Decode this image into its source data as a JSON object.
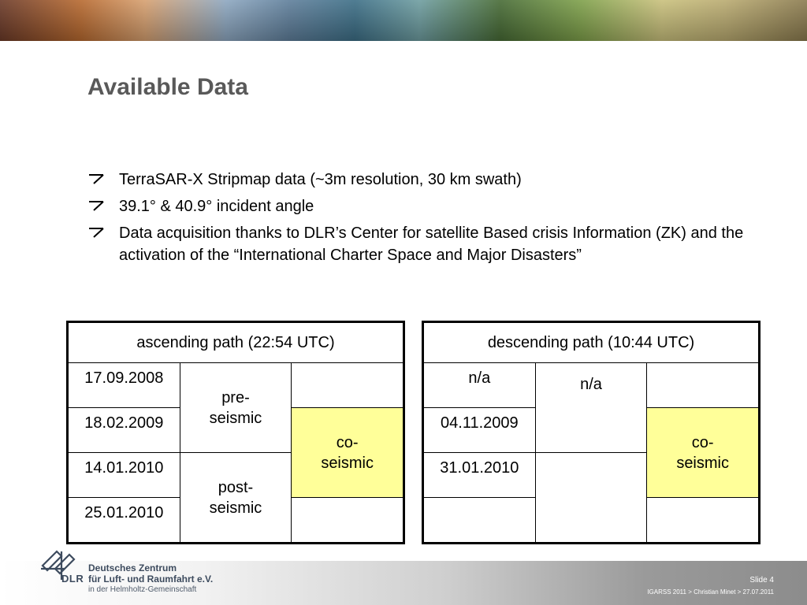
{
  "slide": {
    "title": "Available Data",
    "bullets": [
      "TerraSAR-X Stripmap data (~3m resolution, 30 km swath)",
      "39.1° & 40.9° incident angle",
      "Data acquisition thanks to DLR’s Center for satellite Based crisis Information (ZK) and the activation of the “International Charter Space and Major Disasters”"
    ]
  },
  "ascending": {
    "header": "ascending path (22:54 UTC)",
    "dates": [
      "17.09.2008",
      "18.02.2009",
      "14.01.2010",
      "25.01.2010"
    ],
    "pre": "pre-\nseismic",
    "post": "post-\nseismic",
    "co": "co-\nseismic"
  },
  "descending": {
    "header": "descending path (10:44 UTC)",
    "dates": [
      "n/a",
      "04.11.2009",
      "31.01.2010",
      ""
    ],
    "phase": "n/a",
    "co": "co-\nseismic"
  },
  "footer": {
    "org_line1": "Deutsches Zentrum",
    "org_line2": "für Luft- und Raumfahrt e.V.",
    "org_line3": "in der Helmholtz-Gemeinschaft",
    "abbr": "DLR",
    "slide_number": "Slide 4",
    "info": "IGARSS  2011 > Christian Minet > 27.07.2011"
  },
  "colors": {
    "highlight": "#ffff99",
    "title": "#595959"
  }
}
